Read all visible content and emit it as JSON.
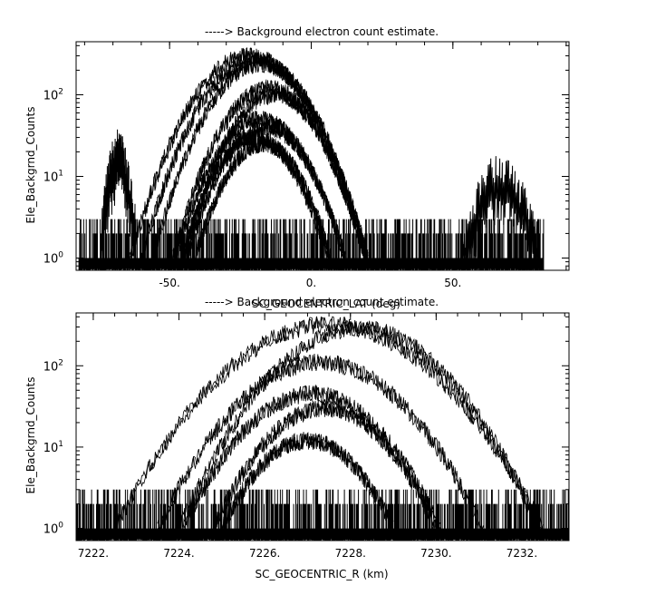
{
  "chart_data": [
    {
      "type": "line",
      "title": "-----> Background electron count estimate.",
      "xlabel": "SC_GEOCENTRIC_LAT (deg)",
      "ylabel": "Ele_Backgrnd_Counts",
      "xlim": [
        -83,
        91
      ],
      "ylim_log10": [
        -0.15,
        2.65
      ],
      "y_scale": "log",
      "x_ticks": [
        {
          "v": -50,
          "label": "-50."
        },
        {
          "v": 0,
          "label": "0."
        },
        {
          "v": 50,
          "label": "50."
        }
      ],
      "y_ticks": [
        {
          "v": 1,
          "exp": "0"
        },
        {
          "v": 10,
          "exp": "1"
        },
        {
          "v": 100,
          "exp": "2"
        }
      ],
      "x_minor_step": 10,
      "data_extent": [
        -82,
        82
      ],
      "noise_level_values": [
        1,
        2,
        3
      ],
      "series": [
        {
          "peak": 300,
          "center": -22,
          "halfwidth": 42
        },
        {
          "peak": 270,
          "center": -20,
          "halfwidth": 40
        },
        {
          "peak": 240,
          "center": -18,
          "halfwidth": 38
        },
        {
          "peak": 120,
          "center": -15,
          "halfwidth": 34
        },
        {
          "peak": 100,
          "center": -13,
          "halfwidth": 32
        },
        {
          "peak": 50,
          "center": -18,
          "halfwidth": 30
        },
        {
          "peak": 40,
          "center": -16,
          "halfwidth": 28
        },
        {
          "peak": 30,
          "center": -20,
          "halfwidth": 26
        },
        {
          "peak": 25,
          "center": -17,
          "halfwidth": 24
        }
      ],
      "bursts": [
        {
          "center": -68,
          "width": 4,
          "peak": 40
        },
        {
          "center": 67,
          "width": 9,
          "peak": 20
        }
      ]
    },
    {
      "type": "line",
      "title": "-----> Background electron count estimate.",
      "xlabel": "SC_GEOCENTRIC_R (km)",
      "ylabel": "Ele_Backgrnd_Counts",
      "xlim": [
        7221.6,
        7233.1
      ],
      "ylim_log10": [
        -0.15,
        2.65
      ],
      "y_scale": "log",
      "x_ticks": [
        {
          "v": 7222,
          "label": "7222."
        },
        {
          "v": 7224,
          "label": "7224."
        },
        {
          "v": 7226,
          "label": "7226."
        },
        {
          "v": 7228,
          "label": "7228."
        },
        {
          "v": 7230,
          "label": "7230."
        },
        {
          "v": 7232,
          "label": "7232."
        }
      ],
      "y_ticks": [
        {
          "v": 1,
          "exp": "0"
        },
        {
          "v": 10,
          "exp": "1"
        },
        {
          "v": 100,
          "exp": "2"
        }
      ],
      "x_minor_step": 0.5,
      "data_extent": [
        7221.6,
        7233.1
      ],
      "noise_level_values": [
        1,
        2,
        3
      ],
      "series": [
        {
          "peak": 320,
          "center": 7227.5,
          "halfwidth": 5.0
        },
        {
          "peak": 290,
          "center": 7228.2,
          "halfwidth": 4.2
        },
        {
          "peak": 110,
          "center": 7227.3,
          "halfwidth": 3.8
        },
        {
          "peak": 45,
          "center": 7227.1,
          "halfwidth": 3.0
        },
        {
          "peak": 30,
          "center": 7227.4,
          "halfwidth": 2.6
        },
        {
          "peak": 12,
          "center": 7227.0,
          "halfwidth": 2.0
        }
      ],
      "bursts": []
    }
  ]
}
